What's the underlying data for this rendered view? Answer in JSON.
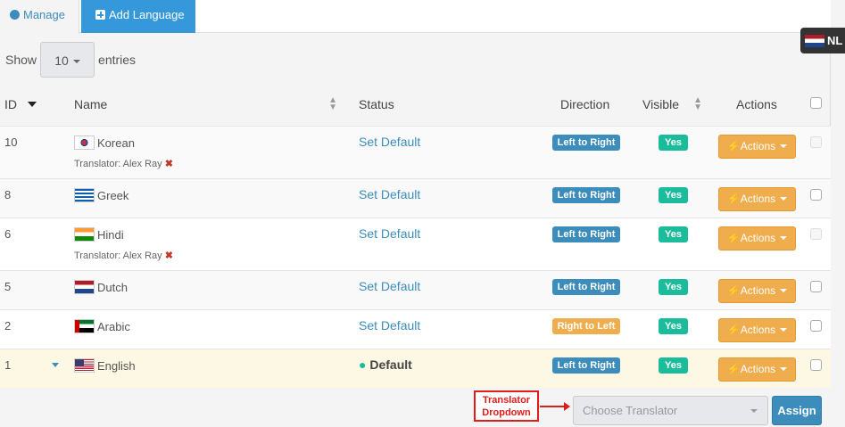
{
  "tabs": {
    "manage": "Manage",
    "add": "Add Language"
  },
  "lang_switch": "NL",
  "length": {
    "show": "Show",
    "value": "10",
    "entries": "entries"
  },
  "columns": {
    "id": "ID",
    "name": "Name",
    "status": "Status",
    "direction": "Direction",
    "visible": "Visible",
    "actions": "Actions"
  },
  "rows": [
    {
      "id": "10",
      "name": "Korean",
      "flag": "kr",
      "translator": "Translator: Alex Ray",
      "status": "Set Default",
      "direction": "Left to Right",
      "visible": "Yes",
      "actions": "Actions",
      "checkbox_disabled": true
    },
    {
      "id": "8",
      "name": "Greek",
      "flag": "gr",
      "status": "Set Default",
      "direction": "Left to Right",
      "visible": "Yes",
      "actions": "Actions"
    },
    {
      "id": "6",
      "name": "Hindi",
      "flag": "in",
      "translator": "Translator: Alex Ray",
      "status": "Set Default",
      "direction": "Left to Right",
      "visible": "Yes",
      "actions": "Actions",
      "checkbox_disabled": true
    },
    {
      "id": "5",
      "name": "Dutch",
      "flag": "nl",
      "status": "Set Default",
      "direction": "Left to Right",
      "visible": "Yes",
      "actions": "Actions"
    },
    {
      "id": "2",
      "name": "Arabic",
      "flag": "ae",
      "status": "Set Default",
      "direction": "Right to Left",
      "visible": "Yes",
      "actions": "Actions"
    },
    {
      "id": "1",
      "name": "English",
      "flag": "us",
      "status": "Default",
      "direction": "Left to Right",
      "visible": "Yes",
      "actions": "Actions",
      "expanded": true
    }
  ],
  "translator": {
    "annotation": "Translator Dropdown",
    "placeholder": "Choose Translator",
    "assign": "Assign"
  },
  "colors": {
    "primary": "#3c8dbc",
    "warning": "#f0ad4e",
    "success": "#1abc9c",
    "highlight": "#fdf8e4",
    "annotation": "#e21b1b"
  }
}
